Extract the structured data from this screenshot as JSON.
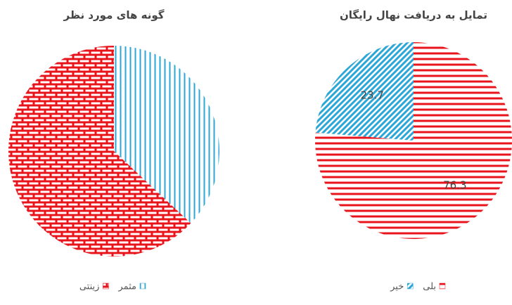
{
  "chart_data": [
    {
      "type": "pie",
      "title": "گونه های مورد نظر",
      "categories": [
        "مثمر",
        "زینتی"
      ],
      "values": [
        37,
        63
      ],
      "colors": [
        "#2aa7d6",
        "#e8141b"
      ],
      "patterns": [
        "vertical",
        "brick"
      ],
      "data_labels": false,
      "legend": "bottom"
    },
    {
      "type": "pie",
      "title": "تمایل به دریافت نهال رایگان",
      "categories": [
        "بلی",
        "خیر"
      ],
      "values": [
        76.3,
        23.7
      ],
      "colors": [
        "#e8141b",
        "#2aa7d6"
      ],
      "patterns": [
        "horizontal",
        "diagonal"
      ],
      "data_labels": true,
      "legend": "bottom"
    }
  ]
}
